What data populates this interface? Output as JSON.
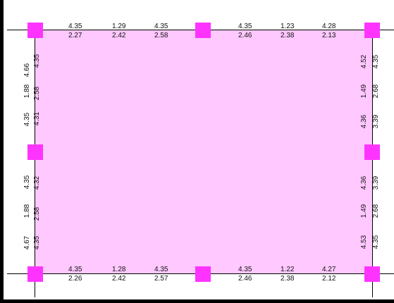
{
  "top_row_a": [
    "4.35",
    "1.29",
    "4.35",
    "4.35",
    "1.23",
    "4.28"
  ],
  "top_row_b": [
    "2.27",
    "2.42",
    "2.58",
    "2.46",
    "2.38",
    "2.13"
  ],
  "bottom_row_a": [
    "4.35",
    "1.28",
    "4.35",
    "4.35",
    "1.22",
    "4.27"
  ],
  "bottom_row_b": [
    "2.26",
    "2.42",
    "2.57",
    "2.46",
    "2.38",
    "2.12"
  ],
  "left_outer": [
    "4.66",
    "1.88",
    "4.35",
    "4.35",
    "1.88",
    "4.67"
  ],
  "left_inner": [
    "4.35",
    "2.58",
    "4.31",
    "4.32",
    "2.58",
    "4.35"
  ],
  "right_outer": [
    "4.52",
    "1.49",
    "4.36",
    "4.36",
    "1.49",
    "4.53"
  ],
  "right_inner": [
    "4.35",
    "2.68",
    "3.39",
    "3.39",
    "2.68",
    "4.35"
  ],
  "colors": {
    "slab": "#ffc8ff",
    "column": "#ff33ff",
    "line": "#000000"
  }
}
